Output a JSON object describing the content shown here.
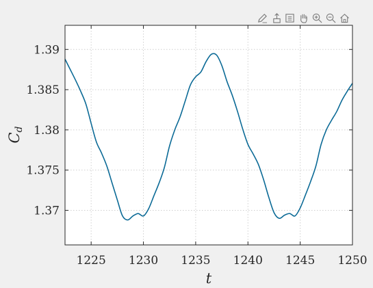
{
  "toolbar": {
    "icons": [
      "brush-icon",
      "export-icon",
      "legend-icon",
      "pan-icon",
      "zoom-in-icon",
      "zoom-out-icon",
      "home-icon"
    ],
    "icon_color": "#7a7a7a"
  },
  "colors": {
    "figure_bg": "#f0f0f0",
    "axes_bg": "#ffffff",
    "axis_color": "#262626",
    "grid_color": "#cfcfcf",
    "line_color": "#0b6a96"
  },
  "chart_data": {
    "type": "line",
    "xlabel": "t",
    "ylabel": "C_d",
    "xlim": [
      1222.5,
      1250
    ],
    "ylim": [
      1.3657,
      1.393
    ],
    "xticks": [
      1225,
      1230,
      1235,
      1240,
      1245,
      1250
    ],
    "xtick_labels": [
      "1225",
      "1230",
      "1235",
      "1240",
      "1245",
      "1250"
    ],
    "yticks": [
      1.37,
      1.375,
      1.38,
      1.385,
      1.39
    ],
    "ytick_labels": [
      "1.37",
      "1.375",
      "1.38",
      "1.385",
      "1.39"
    ],
    "grid": true,
    "grid_style": "dotted",
    "box": true,
    "series": [
      {
        "x": [
          1222.5,
          1223.0,
          1223.5,
          1224.0,
          1224.5,
          1225.0,
          1225.5,
          1226.0,
          1226.5,
          1227.0,
          1227.5,
          1228.0,
          1228.5,
          1229.0,
          1229.5,
          1230.0,
          1230.5,
          1231.0,
          1231.5,
          1232.0,
          1232.5,
          1233.0,
          1233.5,
          1234.0,
          1234.5,
          1235.0,
          1235.5,
          1236.0,
          1236.5,
          1237.0,
          1237.5,
          1238.0,
          1238.5,
          1239.0,
          1239.5,
          1240.0,
          1240.5,
          1241.0,
          1241.5,
          1242.0,
          1242.5,
          1243.0,
          1243.5,
          1244.0,
          1244.5,
          1245.0,
          1245.5,
          1246.0,
          1246.5,
          1247.0,
          1247.5,
          1248.0,
          1248.5,
          1249.0,
          1249.5,
          1250.0
        ],
        "y": [
          1.3888,
          1.3875,
          1.3862,
          1.3848,
          1.3832,
          1.3808,
          1.3785,
          1.3771,
          1.3755,
          1.3734,
          1.3713,
          1.3693,
          1.3688,
          1.3693,
          1.3696,
          1.3693,
          1.3702,
          1.3718,
          1.3734,
          1.3753,
          1.378,
          1.38,
          1.3816,
          1.3836,
          1.3856,
          1.3866,
          1.3872,
          1.3885,
          1.3894,
          1.3893,
          1.388,
          1.386,
          1.3843,
          1.3823,
          1.3801,
          1.3782,
          1.377,
          1.3757,
          1.3738,
          1.3716,
          1.3697,
          1.369,
          1.3694,
          1.3696,
          1.3693,
          1.3703,
          1.3719,
          1.3736,
          1.3755,
          1.3782,
          1.38,
          1.3812,
          1.3823,
          1.3837,
          1.3848,
          1.3858
        ]
      }
    ]
  }
}
